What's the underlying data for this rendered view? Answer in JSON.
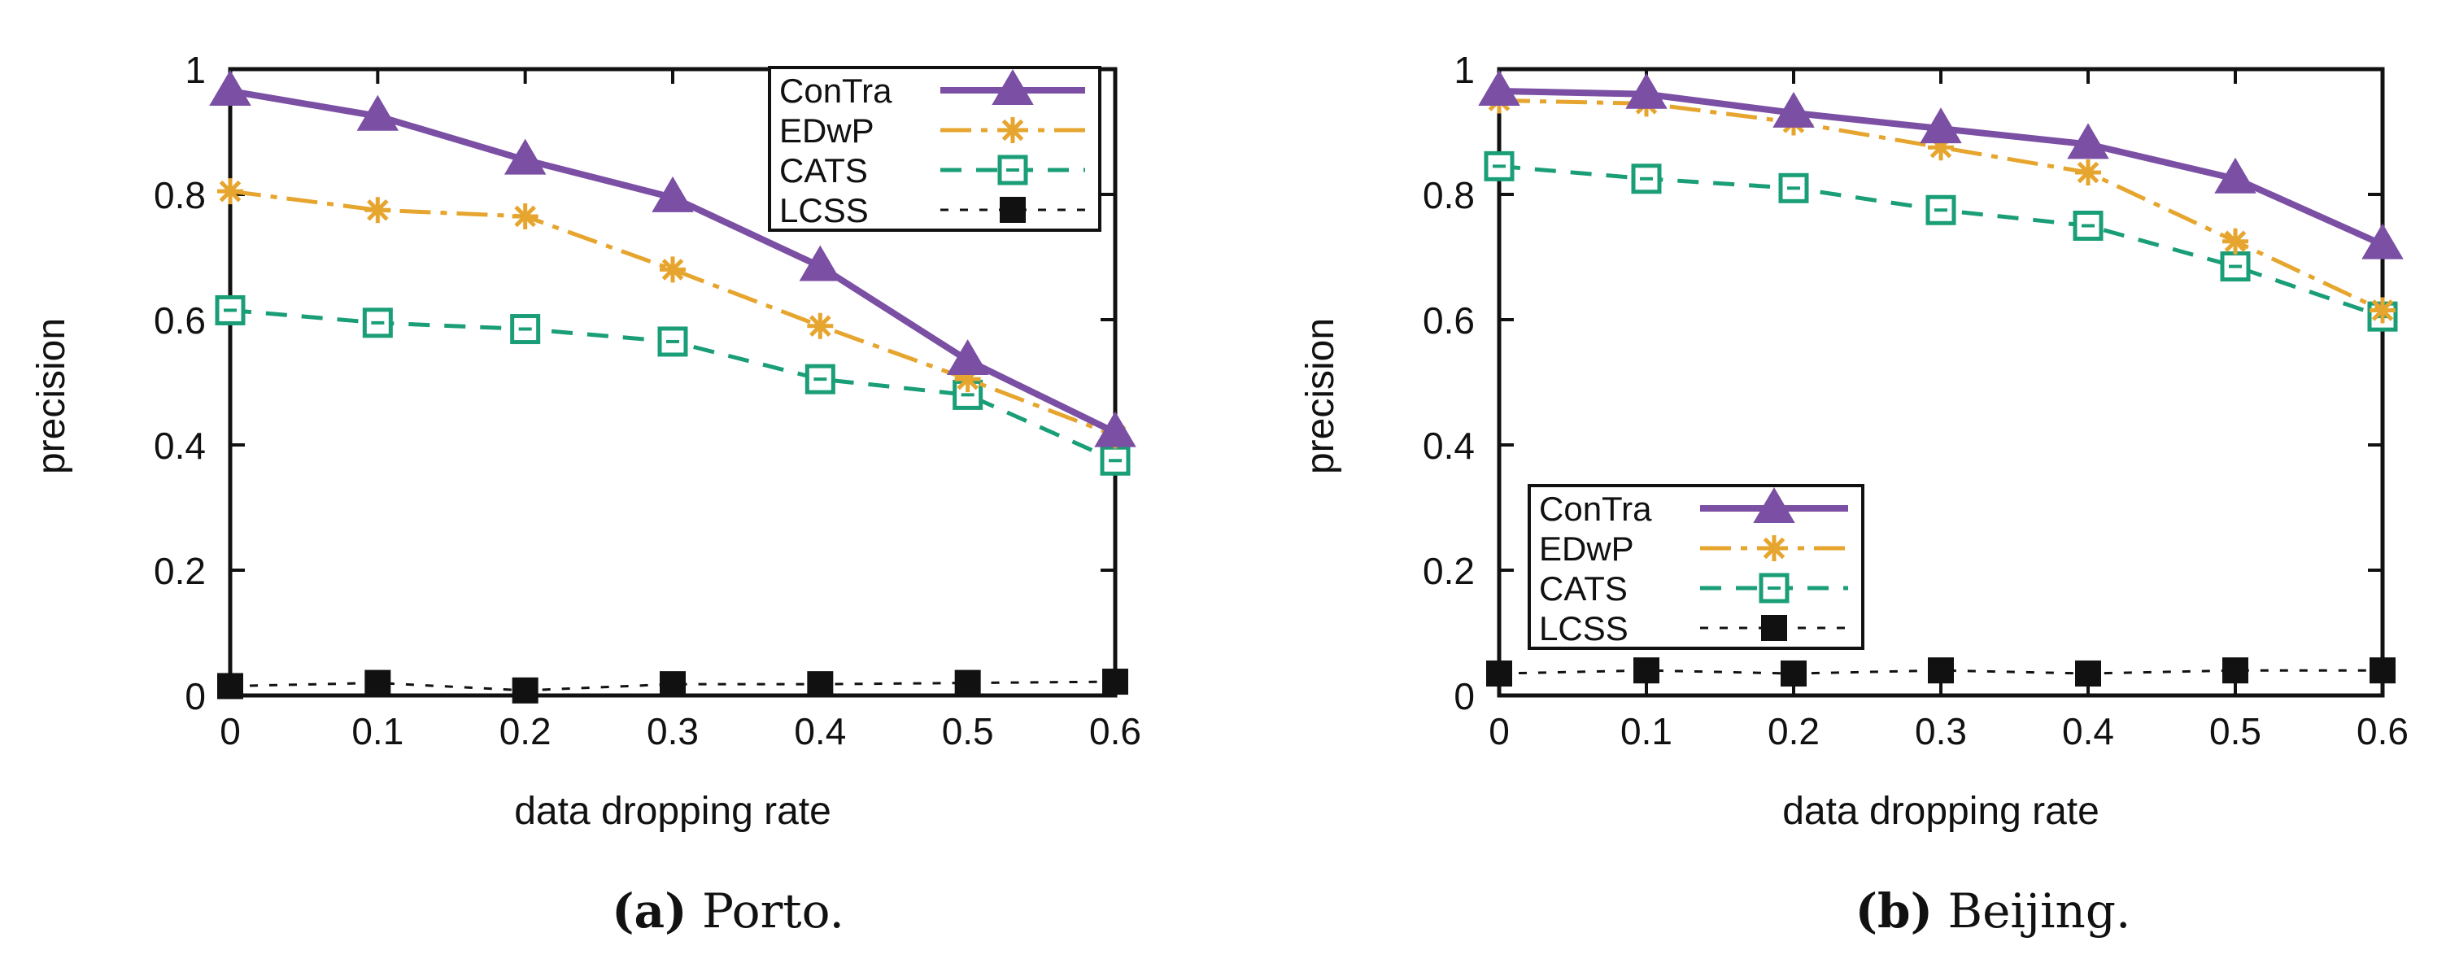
{
  "chart_data": [
    {
      "id": "porto",
      "type": "line",
      "panel_label": "(a)",
      "caption": "Porto.",
      "xlabel": "data dropping rate",
      "ylabel": "precision",
      "x": [
        0,
        0.1,
        0.2,
        0.3,
        0.4,
        0.5,
        0.6
      ],
      "xticks": [
        "0",
        "0.1",
        "0.2",
        "0.3",
        "0.4",
        "0.5",
        "0.6"
      ],
      "yticks": [
        "0",
        "0.2",
        "0.4",
        "0.6",
        "0.8",
        "1"
      ],
      "xlim": [
        0,
        0.6
      ],
      "ylim": [
        0,
        1
      ],
      "legend_position": "top-right",
      "series": [
        {
          "name": "ConTra",
          "values": [
            0.965,
            0.925,
            0.855,
            0.795,
            0.685,
            0.535,
            0.42
          ]
        },
        {
          "name": "EDwP",
          "values": [
            0.805,
            0.775,
            0.765,
            0.68,
            0.59,
            0.505,
            0.415
          ]
        },
        {
          "name": "CATS",
          "values": [
            0.615,
            0.595,
            0.585,
            0.565,
            0.505,
            0.48,
            0.375
          ]
        },
        {
          "name": "LCSS",
          "values": [
            0.015,
            0.02,
            0.008,
            0.018,
            0.018,
            0.02,
            0.022
          ]
        }
      ]
    },
    {
      "id": "beijing",
      "type": "line",
      "panel_label": "(b)",
      "caption": "Beijing.",
      "xlabel": "data dropping rate",
      "ylabel": "precision",
      "x": [
        0,
        0.1,
        0.2,
        0.3,
        0.4,
        0.5,
        0.6
      ],
      "xticks": [
        "0",
        "0.1",
        "0.2",
        "0.3",
        "0.4",
        "0.5",
        "0.6"
      ],
      "yticks": [
        "0",
        "0.2",
        "0.4",
        "0.6",
        "0.8",
        "1"
      ],
      "xlim": [
        0,
        0.6
      ],
      "ylim": [
        0,
        1
      ],
      "legend_position": "bottom-left",
      "series": [
        {
          "name": "ConTra",
          "values": [
            0.965,
            0.96,
            0.93,
            0.905,
            0.88,
            0.825,
            0.72
          ]
        },
        {
          "name": "EDwP",
          "values": [
            0.95,
            0.945,
            0.915,
            0.875,
            0.835,
            0.725,
            0.615
          ]
        },
        {
          "name": "CATS",
          "values": [
            0.845,
            0.825,
            0.81,
            0.775,
            0.75,
            0.685,
            0.605
          ]
        },
        {
          "name": "LCSS",
          "values": [
            0.035,
            0.04,
            0.035,
            0.04,
            0.035,
            0.04,
            0.04
          ]
        }
      ]
    }
  ],
  "styles": {
    "ConTra": {
      "color": "#7b4fa3",
      "marker": "triangle"
    },
    "EDwP": {
      "color": "#e6a52e",
      "marker": "star"
    },
    "CATS": {
      "color": "#1a9e77",
      "marker": "square-open"
    },
    "LCSS": {
      "color": "#111111",
      "marker": "square-filled"
    }
  }
}
